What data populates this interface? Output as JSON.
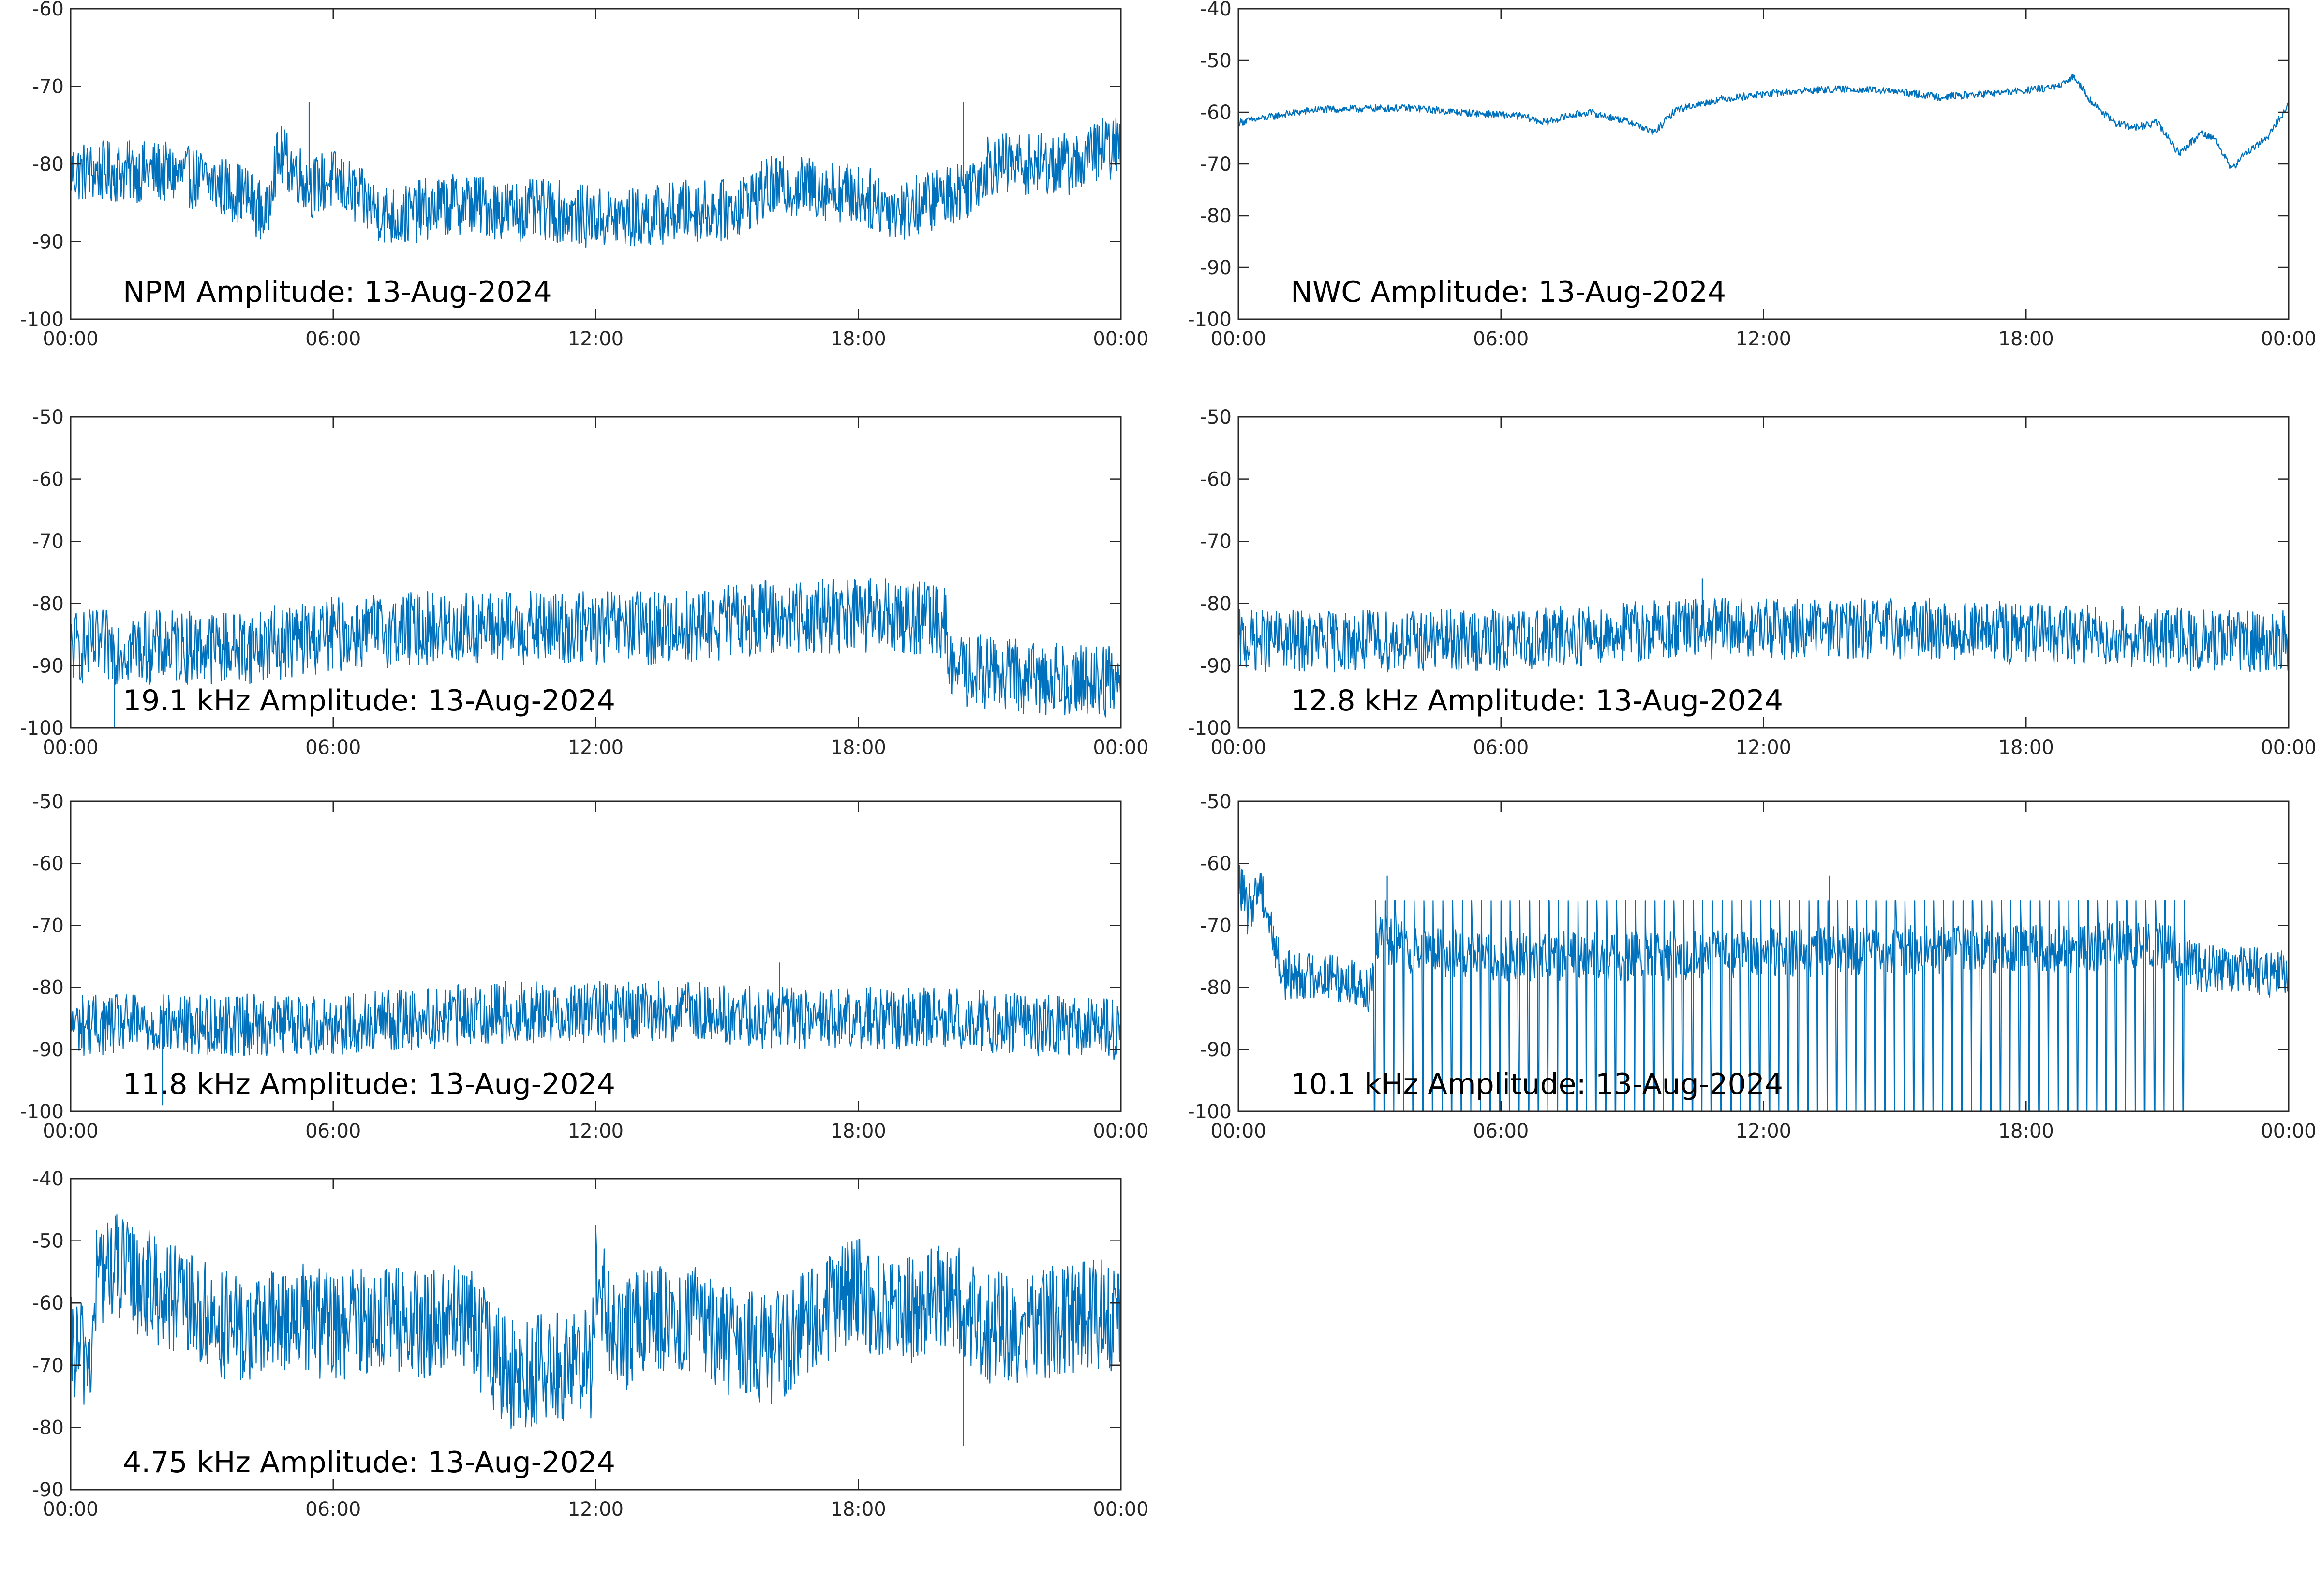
{
  "colors": {
    "series": "#0072bd",
    "axes": "#262626",
    "background": "#ffffff"
  },
  "chart_data": [
    {
      "type": "line",
      "title": "NPM Amplitude: 13-Aug-2024",
      "xlim": [
        0,
        24
      ],
      "xticks": [
        "00:00",
        "06:00",
        "12:00",
        "18:00",
        "00:00"
      ],
      "ylim": [
        -100,
        -60
      ],
      "yticks": [
        -60,
        -70,
        -80,
        -90,
        -100
      ],
      "grid": false,
      "series": [
        {
          "x": [
            0,
            1,
            2,
            3,
            4,
            4.5,
            4.6,
            4.8,
            5.0,
            5.5,
            6,
            7,
            7.5,
            8,
            9,
            10,
            11,
            12,
            13,
            14,
            15,
            16,
            17,
            18,
            19,
            20,
            20.5,
            21,
            22,
            23,
            23.5,
            24
          ],
          "y": [
            -81,
            -81,
            -81,
            -82,
            -84,
            -87,
            -81,
            -79,
            -80,
            -83,
            -82,
            -86,
            -87,
            -86,
            -85,
            -86,
            -86,
            -87,
            -87,
            -86,
            -86,
            -83,
            -83,
            -84,
            -86,
            -84,
            -83,
            -80,
            -80,
            -80,
            -78,
            -78
          ],
          "noise": 4,
          "spikes": [
            [
              5.45,
              -72
            ],
            [
              20.4,
              -72
            ]
          ]
        }
      ]
    },
    {
      "type": "line",
      "title": "NWC Amplitude: 13-Aug-2024",
      "xlim": [
        0,
        24
      ],
      "xticks": [
        "00:00",
        "06:00",
        "12:00",
        "18:00",
        "00:00"
      ],
      "ylim": [
        -100,
        -40
      ],
      "yticks": [
        -40,
        -50,
        -60,
        -70,
        -80,
        -90,
        -100
      ],
      "grid": false,
      "series": [
        {
          "x": [
            0,
            1,
            1.8,
            3,
            4,
            5,
            6,
            6.5,
            7,
            7.5,
            8,
            9,
            9.5,
            10,
            11,
            12,
            13,
            14,
            15,
            16,
            17,
            18,
            18.8,
            19.1,
            19.5,
            20,
            20.5,
            21,
            21.5,
            22,
            22.3,
            22.7,
            23,
            23.5,
            24
          ],
          "y": [
            -62,
            -60.5,
            -59.5,
            -59.3,
            -59.2,
            -60,
            -60.5,
            -60.8,
            -62,
            -60.8,
            -60,
            -62,
            -64,
            -59.5,
            -57.5,
            -56.5,
            -55.8,
            -55.5,
            -56,
            -57,
            -56.5,
            -55.8,
            -55,
            -53,
            -58,
            -62,
            -63,
            -62,
            -68,
            -64,
            -65,
            -71,
            -68,
            -65,
            -58.5
          ],
          "noise": 0.7,
          "spikes": []
        }
      ]
    },
    {
      "type": "line",
      "title": "19.1 kHz Amplitude: 13-Aug-2024",
      "xlim": [
        0,
        24
      ],
      "xticks": [
        "00:00",
        "06:00",
        "12:00",
        "18:00",
        "00:00"
      ],
      "ylim": [
        -100,
        -50
      ],
      "yticks": [
        -50,
        -60,
        -70,
        -80,
        -90,
        -100
      ],
      "grid": false,
      "series": [
        {
          "x": [
            0,
            2,
            4,
            6,
            8,
            10,
            12,
            14,
            15,
            16,
            17,
            18,
            19,
            20,
            20.1,
            21,
            22,
            23,
            24
          ],
          "y": [
            -87,
            -87,
            -87,
            -85,
            -84,
            -84,
            -84,
            -84,
            -83,
            -82,
            -82,
            -82,
            -82,
            -83,
            -91,
            -91,
            -92,
            -92,
            -93
          ],
          "noise": 6,
          "spikes": [
            [
              1.0,
              -100
            ]
          ]
        }
      ]
    },
    {
      "type": "line",
      "title": "12.8 kHz Amplitude: 13-Aug-2024",
      "xlim": [
        0,
        24
      ],
      "xticks": [
        "00:00",
        "06:00",
        "12:00",
        "18:00",
        "00:00"
      ],
      "ylim": [
        -100,
        -50
      ],
      "yticks": [
        -50,
        -60,
        -70,
        -80,
        -90,
        -100
      ],
      "grid": false,
      "series": [
        {
          "x": [
            0,
            3,
            6,
            8,
            10,
            12,
            14,
            16,
            18,
            20,
            22,
            24
          ],
          "y": [
            -86,
            -86,
            -86,
            -85,
            -84,
            -84,
            -84,
            -84,
            -85,
            -85,
            -86,
            -86
          ],
          "noise": 5,
          "spikes": [
            [
              10.6,
              -76
            ]
          ]
        }
      ]
    },
    {
      "type": "line",
      "title": "11.8 kHz Amplitude: 13-Aug-2024",
      "xlim": [
        0,
        24
      ],
      "xticks": [
        "00:00",
        "06:00",
        "12:00",
        "18:00",
        "00:00"
      ],
      "ylim": [
        -100,
        -50
      ],
      "yticks": [
        -50,
        -60,
        -70,
        -80,
        -90,
        -100
      ],
      "grid": false,
      "series": [
        {
          "x": [
            0,
            3,
            6,
            8,
            10,
            12,
            14,
            16,
            18,
            20,
            22,
            24
          ],
          "y": [
            -86,
            -86,
            -86,
            -85,
            -84,
            -84,
            -84,
            -85,
            -85,
            -85,
            -86,
            -87
          ],
          "noise": 5,
          "spikes": [
            [
              2.1,
              -99
            ],
            [
              16.2,
              -76
            ]
          ]
        }
      ]
    },
    {
      "type": "line",
      "title": "10.1 kHz Amplitude: 13-Aug-2024",
      "xlim": [
        0,
        24
      ],
      "xticks": [
        "00:00",
        "06:00",
        "12:00",
        "18:00",
        "00:00"
      ],
      "ylim": [
        -100,
        -50
      ],
      "yticks": [
        -50,
        -60,
        -70,
        -80,
        -90,
        -100
      ],
      "grid": false,
      "series": [
        {
          "x": [
            0,
            0.2,
            0.5,
            1,
            2,
            3,
            3.2,
            4,
            6,
            10,
            14,
            18,
            21,
            22,
            23,
            24
          ],
          "y": [
            -62,
            -68,
            -63,
            -78,
            -78,
            -80,
            -72,
            -74,
            -75,
            -75,
            -74,
            -74,
            -73,
            -77,
            -77,
            -78
          ],
          "noise": 4,
          "drops": {
            "start": 3.1,
            "end": 21.8,
            "spacing": 0.22,
            "low": -100,
            "high": -66
          },
          "spikes": [
            [
              0.1,
              -61
            ],
            [
              3.4,
              -62
            ],
            [
              13.5,
              -62
            ]
          ]
        }
      ]
    },
    {
      "type": "line",
      "title": "4.75 kHz Amplitude: 13-Aug-2024",
      "xlim": [
        0,
        24
      ],
      "xticks": [
        "00:00",
        "06:00",
        "12:00",
        "18:00",
        "00:00"
      ],
      "ylim": [
        -90,
        -40
      ],
      "yticks": [
        -40,
        -50,
        -60,
        -70,
        -80,
        -90
      ],
      "grid": false,
      "series": [
        {
          "x": [
            0,
            0.5,
            0.6,
            1,
            2,
            3,
            4,
            5,
            6,
            7,
            8,
            9,
            10,
            11,
            11.9,
            12,
            12.5,
            13,
            14,
            15,
            16,
            17,
            18,
            19,
            20,
            21,
            22,
            23,
            24
          ],
          "y": [
            -68,
            -68,
            -55,
            -54,
            -58,
            -62,
            -65,
            -62,
            -64,
            -62,
            -64,
            -62,
            -72,
            -70,
            -70,
            -55,
            -68,
            -62,
            -62,
            -66,
            -68,
            -62,
            -58,
            -62,
            -58,
            -64,
            -64,
            -62,
            -62
          ],
          "noise": 9,
          "spikes": [
            [
              20.4,
              -83
            ]
          ]
        }
      ]
    }
  ]
}
